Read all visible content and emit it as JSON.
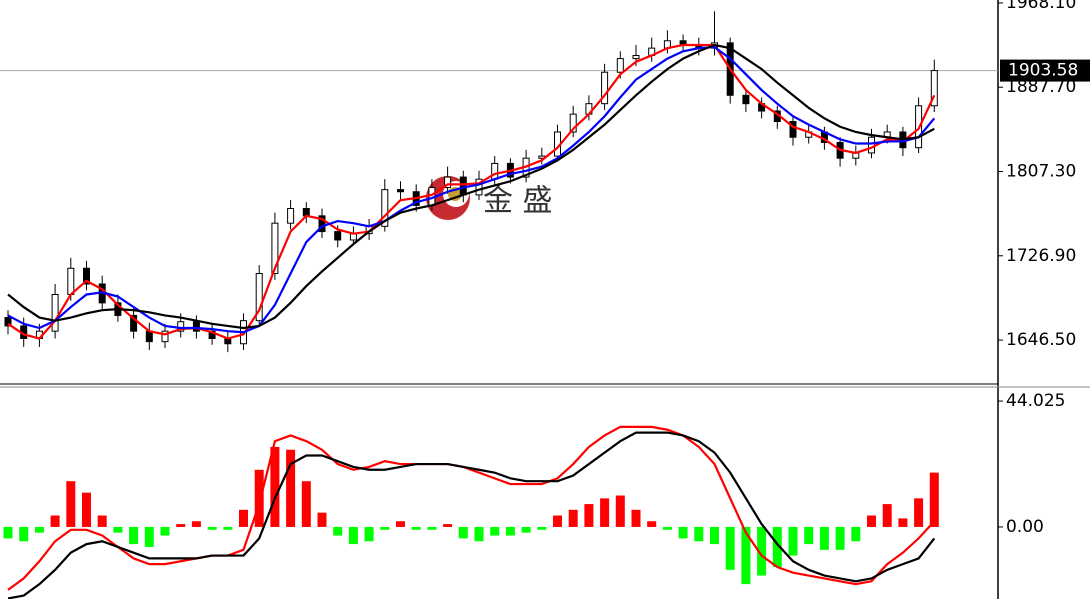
{
  "chart_data": [
    {
      "type": "candlestick",
      "open": [
        1668,
        1660,
        1648,
        1655,
        1690,
        1715,
        1700,
        1682,
        1670,
        1655,
        1645,
        1655,
        1664,
        1655,
        1648,
        1643,
        1665,
        1710,
        1758,
        1772,
        1765,
        1750,
        1742,
        1748,
        1755,
        1790,
        1788,
        1775,
        1792,
        1802,
        1785,
        1800,
        1815,
        1802,
        1820,
        1822,
        1845,
        1862,
        1872,
        1902,
        1915,
        1918,
        1925,
        1932,
        1928,
        1925,
        1930,
        1880,
        1872,
        1865,
        1855,
        1840,
        1845,
        1835,
        1820,
        1825,
        1840,
        1845,
        1830,
        1870
      ],
      "high": [
        1675,
        1668,
        1662,
        1700,
        1725,
        1722,
        1708,
        1690,
        1678,
        1663,
        1662,
        1672,
        1670,
        1662,
        1655,
        1672,
        1718,
        1768,
        1780,
        1778,
        1772,
        1756,
        1755,
        1762,
        1800,
        1798,
        1795,
        1800,
        1812,
        1808,
        1808,
        1822,
        1820,
        1828,
        1830,
        1852,
        1870,
        1880,
        1910,
        1922,
        1928,
        1935,
        1942,
        1938,
        1935,
        1960,
        1935,
        1886,
        1878,
        1870,
        1860,
        1852,
        1850,
        1840,
        1832,
        1848,
        1852,
        1850,
        1878,
        1914
      ],
      "low": [
        1652,
        1640,
        1640,
        1648,
        1684,
        1694,
        1676,
        1664,
        1648,
        1637,
        1639,
        1649,
        1648,
        1642,
        1635,
        1637,
        1660,
        1704,
        1752,
        1758,
        1744,
        1735,
        1737,
        1742,
        1750,
        1781,
        1769,
        1770,
        1786,
        1778,
        1780,
        1794,
        1796,
        1797,
        1814,
        1817,
        1840,
        1856,
        1866,
        1896,
        1908,
        1912,
        1920,
        1921,
        1918,
        1918,
        1872,
        1864,
        1858,
        1848,
        1832,
        1834,
        1828,
        1812,
        1813,
        1820,
        1834,
        1822,
        1825,
        1864
      ],
      "close": [
        1660,
        1648,
        1655,
        1690,
        1715,
        1700,
        1682,
        1670,
        1655,
        1645,
        1655,
        1664,
        1655,
        1648,
        1643,
        1665,
        1710,
        1758,
        1772,
        1765,
        1750,
        1742,
        1748,
        1755,
        1790,
        1788,
        1775,
        1792,
        1802,
        1785,
        1800,
        1815,
        1802,
        1820,
        1822,
        1845,
        1862,
        1872,
        1902,
        1915,
        1918,
        1925,
        1932,
        1928,
        1925,
        1930,
        1880,
        1872,
        1865,
        1855,
        1840,
        1845,
        1835,
        1820,
        1825,
        1840,
        1845,
        1830,
        1870,
        1903.58
      ],
      "series": [
        {
          "color": "#ff0000",
          "values": [
            1662,
            1652,
            1648,
            1665,
            1690,
            1703,
            1695,
            1680,
            1667,
            1655,
            1652,
            1657,
            1658,
            1654,
            1648,
            1652,
            1675,
            1715,
            1750,
            1765,
            1762,
            1752,
            1748,
            1750,
            1765,
            1780,
            1782,
            1785,
            1795,
            1795,
            1796,
            1805,
            1808,
            1812,
            1818,
            1830,
            1848,
            1862,
            1880,
            1900,
            1912,
            1918,
            1925,
            1928,
            1928,
            1928,
            1905,
            1885,
            1872,
            1862,
            1850,
            1845,
            1838,
            1828,
            1825,
            1830,
            1838,
            1836,
            1848,
            1880
          ]
        },
        {
          "color": "#0000ff",
          "values": [
            1670,
            1662,
            1658,
            1665,
            1678,
            1690,
            1692,
            1688,
            1678,
            1668,
            1660,
            1658,
            1658,
            1657,
            1655,
            1654,
            1660,
            1680,
            1710,
            1740,
            1755,
            1760,
            1758,
            1755,
            1760,
            1770,
            1778,
            1782,
            1788,
            1792,
            1795,
            1800,
            1805,
            1808,
            1812,
            1820,
            1832,
            1845,
            1860,
            1878,
            1895,
            1905,
            1915,
            1922,
            1925,
            1926,
            1915,
            1900,
            1885,
            1872,
            1860,
            1852,
            1845,
            1838,
            1834,
            1834,
            1836,
            1836,
            1840,
            1858
          ]
        },
        {
          "color": "#000000",
          "values": [
            1690,
            1678,
            1668,
            1665,
            1668,
            1672,
            1675,
            1676,
            1675,
            1673,
            1670,
            1668,
            1665,
            1662,
            1660,
            1658,
            1660,
            1668,
            1682,
            1698,
            1712,
            1725,
            1738,
            1750,
            1760,
            1768,
            1772,
            1775,
            1780,
            1785,
            1790,
            1794,
            1798,
            1804,
            1810,
            1818,
            1828,
            1840,
            1852,
            1866,
            1880,
            1893,
            1905,
            1915,
            1922,
            1928,
            1925,
            1915,
            1905,
            1892,
            1880,
            1868,
            1858,
            1850,
            1845,
            1842,
            1840,
            1838,
            1840,
            1848
          ]
        }
      ],
      "ylim": [
        1604.6,
        1970.9
      ],
      "yticks": [
        {
          "value": 1968.1,
          "label": "1968.10"
        },
        {
          "value": 1887.7,
          "label": "1887.70"
        },
        {
          "value": 1807.3,
          "label": "1807.30"
        },
        {
          "value": 1726.9,
          "label": "1726.90"
        },
        {
          "value": 1646.5,
          "label": "1646.50"
        }
      ],
      "last_price": 1903.58,
      "watermark": "金 盛"
    },
    {
      "type": "macd",
      "histogram": {
        "up_color": "#ff0000",
        "down_color": "#00ff00",
        "values": [
          -4,
          -5,
          -2,
          4,
          16,
          12,
          4,
          -2,
          -6,
          -7,
          -3,
          1,
          2,
          -1,
          -1,
          6,
          20,
          28,
          27,
          16,
          5,
          -3,
          -6,
          -5,
          -1,
          2,
          -1,
          -1,
          1,
          -4,
          -5,
          -3,
          -3,
          -2,
          -1,
          4,
          6,
          8,
          10,
          11,
          6,
          2,
          -1,
          -4,
          -5,
          -6,
          -15,
          -20,
          -17,
          -14,
          -10,
          -6,
          -8,
          -8,
          -5,
          4,
          8,
          3,
          10,
          19
        ]
      },
      "series": [
        {
          "color": "#ff0000",
          "values": [
            -22,
            -18,
            -12,
            -5,
            -1,
            -1,
            -3,
            -7,
            -11,
            -13,
            -13,
            -12,
            -11,
            -10,
            -10,
            -8,
            8,
            30,
            32,
            30,
            27,
            22,
            20,
            21,
            23,
            22,
            22,
            22,
            22,
            21,
            19,
            17,
            15,
            15,
            15,
            17,
            22,
            28,
            32,
            35,
            35,
            35,
            34,
            32,
            28,
            22,
            10,
            -2,
            -10,
            -14,
            -16,
            -17,
            -18,
            -19,
            -20,
            -19,
            -13,
            -9,
            -4,
            2
          ]
        },
        {
          "color": "#000000",
          "values": [
            -25,
            -24,
            -20,
            -15,
            -9,
            -6,
            -5,
            -7,
            -9,
            -11,
            -11,
            -11,
            -11,
            -10,
            -10,
            -10,
            -4,
            10,
            22,
            25,
            25,
            23,
            21,
            20,
            20,
            21,
            22,
            22,
            22,
            21,
            20,
            19,
            17,
            16,
            16,
            16,
            18,
            22,
            26,
            30,
            33,
            33,
            33,
            32,
            30,
            26,
            19,
            10,
            1,
            -6,
            -12,
            -15,
            -17,
            -18,
            -19,
            -18,
            -15,
            -13,
            -11,
            -4
          ]
        }
      ],
      "ylim": [
        -25.2,
        48.6
      ],
      "yticks": [
        44.025,
        {
          "value": 0,
          "label": "0.00"
        }
      ]
    }
  ]
}
